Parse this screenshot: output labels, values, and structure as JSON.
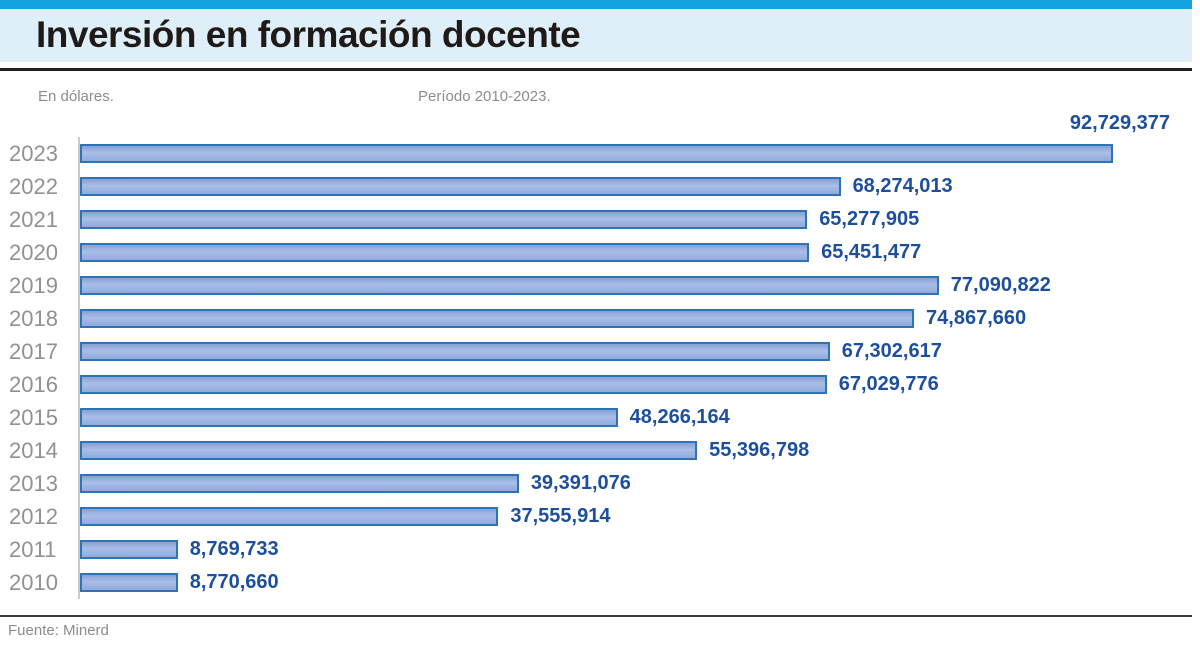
{
  "header": {
    "title": "Inversión en formación docente"
  },
  "meta": {
    "unit_note": "En dólares.",
    "period_note": "Período 2010-2023."
  },
  "footer": {
    "source": "Fuente: Minerd"
  },
  "colors": {
    "accent_cyan": "#14A3DF",
    "header_bg": "#DFEFF9",
    "title_text": "#1F1A17",
    "bar_fill": "#9BB2E0",
    "bar_border": "#2E74B5",
    "value_text": "#1D4F9D",
    "label_gray": "#8C8C8C",
    "axis_gray": "#C9C9C9"
  },
  "chart_data": {
    "type": "bar",
    "orientation": "horizontal",
    "title": "Inversión en formación docente",
    "xlabel": "En dólares.",
    "period": "Período 2010-2023.",
    "source": "Fuente: Minerd",
    "xlim": [
      0,
      92729377
    ],
    "grid": false,
    "legend": false,
    "categories": [
      "2023",
      "2022",
      "2021",
      "2020",
      "2019",
      "2018",
      "2017",
      "2016",
      "2015",
      "2014",
      "2013",
      "2012",
      "2011",
      "2010"
    ],
    "values": [
      92729377,
      68274013,
      65277905,
      65451477,
      77090822,
      74867660,
      67302617,
      67029776,
      48266164,
      55396798,
      39391076,
      37555914,
      8769733,
      8770660
    ],
    "value_labels": [
      "92,729,377",
      "68,274,013",
      "65,277,905",
      "65,451,477",
      "77,090,822",
      "74,867,660",
      "67,302,617",
      "67,029,776",
      "48,266,164",
      "55,396,798",
      "39,391,076",
      "37,555,914",
      "8,769,733",
      "8,770,660"
    ]
  }
}
